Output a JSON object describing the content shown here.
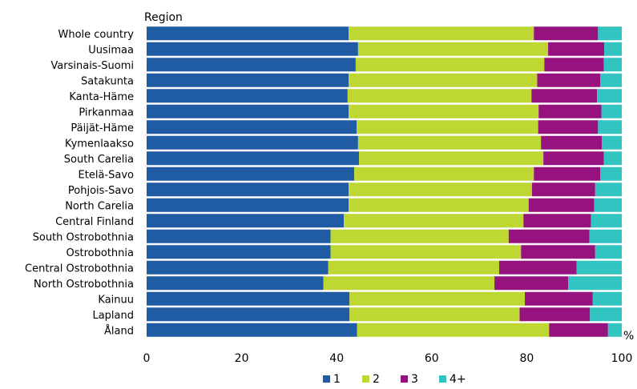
{
  "chart_data": {
    "type": "bar",
    "orientation": "horizontal",
    "stacked": true,
    "title": "",
    "ylabel": "Region",
    "xlabel": "%",
    "xlim": [
      0,
      100
    ],
    "xticks": [
      "0",
      "20",
      "40",
      "60",
      "80",
      "100"
    ],
    "grid": false,
    "legend_position": "bottom",
    "categories": [
      "Whole country",
      "Uusimaa",
      "Varsinais-Suomi",
      "Satakunta",
      "Kanta-Häme",
      "Pirkanmaa",
      "Päijät-Häme",
      "Kymenlaakso",
      "South Carelia",
      "Etelä-Savo",
      "Pohjois-Savo",
      "North Carelia",
      "Central Finland",
      "South Ostrobothnia",
      "Ostrobothnia",
      "Central Ostrobothnia",
      "North Ostrobothnia",
      "Kainuu",
      "Lapland",
      "Åland"
    ],
    "series": [
      {
        "name": "1",
        "color": "#1f5ca3",
        "values": [
          42.5,
          44.5,
          44,
          42.5,
          42.3,
          42.5,
          44.2,
          44.5,
          44.7,
          43.7,
          42.5,
          42.5,
          41.5,
          38.7,
          38.7,
          38.2,
          37.2,
          42.7,
          42.7,
          44.3
        ]
      },
      {
        "name": "2",
        "color": "#bfd732",
        "values": [
          39,
          40,
          39.7,
          39.7,
          38.7,
          40,
          38.2,
          38.5,
          38.8,
          37.8,
          38.6,
          37.9,
          37.8,
          37.5,
          40.1,
          36,
          36,
          36.9,
          35.8,
          40.4
        ]
      },
      {
        "name": "3",
        "color": "#96127f",
        "values": [
          13.5,
          11.8,
          12.5,
          13.3,
          13.8,
          13.2,
          12.6,
          12.8,
          12.7,
          14,
          13.3,
          13.8,
          14.2,
          17,
          15.6,
          16.3,
          15.5,
          14.3,
          14.8,
          12.4
        ]
      },
      {
        "name": "4+",
        "color": "#31c4c0",
        "values": [
          5,
          3.7,
          3.8,
          4.5,
          5.2,
          4.3,
          5,
          4.2,
          3.8,
          4.5,
          5.6,
          5.8,
          6.5,
          6.8,
          5.6,
          9.5,
          11.3,
          6.1,
          6.7,
          2.9
        ]
      }
    ]
  }
}
